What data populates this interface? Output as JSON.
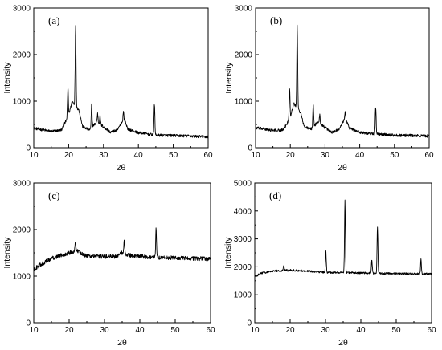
{
  "chart_data": [
    {
      "type": "line",
      "panel_label": "(a)",
      "xlabel": "2θ",
      "ylabel": "Intensity",
      "xlim": [
        10,
        60
      ],
      "ylim": [
        0,
        3000
      ],
      "xticks": [
        10,
        20,
        30,
        40,
        50,
        60
      ],
      "yticks": [
        0,
        1000,
        2000,
        3000
      ],
      "baseline": [
        [
          10,
          420
        ],
        [
          15,
          350
        ],
        [
          18,
          380
        ],
        [
          20,
          700
        ],
        [
          21,
          1000
        ],
        [
          23,
          800
        ],
        [
          24,
          450
        ],
        [
          26,
          380
        ],
        [
          28,
          550
        ],
        [
          30,
          450
        ],
        [
          32,
          330
        ],
        [
          34,
          380
        ],
        [
          35,
          520
        ],
        [
          36,
          600
        ],
        [
          37,
          400
        ],
        [
          40,
          320
        ],
        [
          45,
          270
        ],
        [
          50,
          260
        ],
        [
          55,
          250
        ],
        [
          60,
          230
        ]
      ],
      "peaks": [
        [
          19.8,
          1300
        ],
        [
          22.0,
          2650
        ],
        [
          26.6,
          940
        ],
        [
          28.3,
          730
        ],
        [
          29.0,
          690
        ],
        [
          35.7,
          780
        ],
        [
          44.6,
          920
        ]
      ],
      "noise": 30
    },
    {
      "type": "line",
      "panel_label": "(b)",
      "xlabel": "2θ",
      "ylabel": "Intensity",
      "xlim": [
        10,
        60
      ],
      "ylim": [
        0,
        3000
      ],
      "xticks": [
        10,
        20,
        30,
        40,
        50,
        60
      ],
      "yticks": [
        0,
        1000,
        2000,
        3000
      ],
      "baseline": [
        [
          10,
          430
        ],
        [
          15,
          370
        ],
        [
          18,
          380
        ],
        [
          20,
          650
        ],
        [
          21,
          950
        ],
        [
          23,
          750
        ],
        [
          24,
          450
        ],
        [
          26,
          400
        ],
        [
          28,
          560
        ],
        [
          30,
          430
        ],
        [
          32,
          330
        ],
        [
          34,
          400
        ],
        [
          35,
          550
        ],
        [
          36,
          620
        ],
        [
          37,
          420
        ],
        [
          40,
          330
        ],
        [
          45,
          290
        ],
        [
          50,
          270
        ],
        [
          55,
          260
        ],
        [
          60,
          250
        ]
      ],
      "peaks": [
        [
          19.8,
          1300
        ],
        [
          22.0,
          2650
        ],
        [
          26.6,
          960
        ],
        [
          28.5,
          700
        ],
        [
          35.8,
          770
        ],
        [
          44.6,
          860
        ]
      ],
      "noise": 30
    },
    {
      "type": "line",
      "panel_label": "(c)",
      "xlabel": "2θ",
      "ylabel": "Intensity",
      "xlim": [
        10,
        60
      ],
      "ylim": [
        0,
        3000
      ],
      "xticks": [
        10,
        20,
        30,
        40,
        50,
        60
      ],
      "yticks": [
        0,
        1000,
        2000,
        3000
      ],
      "baseline": [
        [
          10,
          1150
        ],
        [
          12,
          1250
        ],
        [
          15,
          1380
        ],
        [
          20,
          1500
        ],
        [
          22,
          1550
        ],
        [
          25,
          1430
        ],
        [
          30,
          1420
        ],
        [
          33,
          1420
        ],
        [
          35,
          1500
        ],
        [
          37,
          1450
        ],
        [
          40,
          1420
        ],
        [
          45,
          1400
        ],
        [
          50,
          1390
        ],
        [
          55,
          1380
        ],
        [
          60,
          1370
        ]
      ],
      "peaks": [
        [
          21.8,
          1750
        ],
        [
          35.6,
          1770
        ],
        [
          44.6,
          2050
        ]
      ],
      "noise": 45
    },
    {
      "type": "line",
      "panel_label": "(d)",
      "xlabel": "2θ",
      "ylabel": "Intensity",
      "xlim": [
        10,
        60
      ],
      "ylim": [
        0,
        5000
      ],
      "xticks": [
        10,
        20,
        30,
        40,
        50,
        60
      ],
      "yticks": [
        0,
        1000,
        2000,
        3000,
        4000,
        5000
      ],
      "baseline": [
        [
          10,
          1650
        ],
        [
          12,
          1780
        ],
        [
          15,
          1850
        ],
        [
          20,
          1880
        ],
        [
          25,
          1850
        ],
        [
          30,
          1800
        ],
        [
          35,
          1800
        ],
        [
          40,
          1780
        ],
        [
          45,
          1770
        ],
        [
          50,
          1760
        ],
        [
          55,
          1750
        ],
        [
          60,
          1750
        ]
      ],
      "peaks": [
        [
          18.2,
          2050
        ],
        [
          30.1,
          2580
        ],
        [
          35.5,
          4400
        ],
        [
          43.1,
          2280
        ],
        [
          44.7,
          3450
        ],
        [
          57.0,
          2280
        ]
      ],
      "noise": 35
    }
  ]
}
